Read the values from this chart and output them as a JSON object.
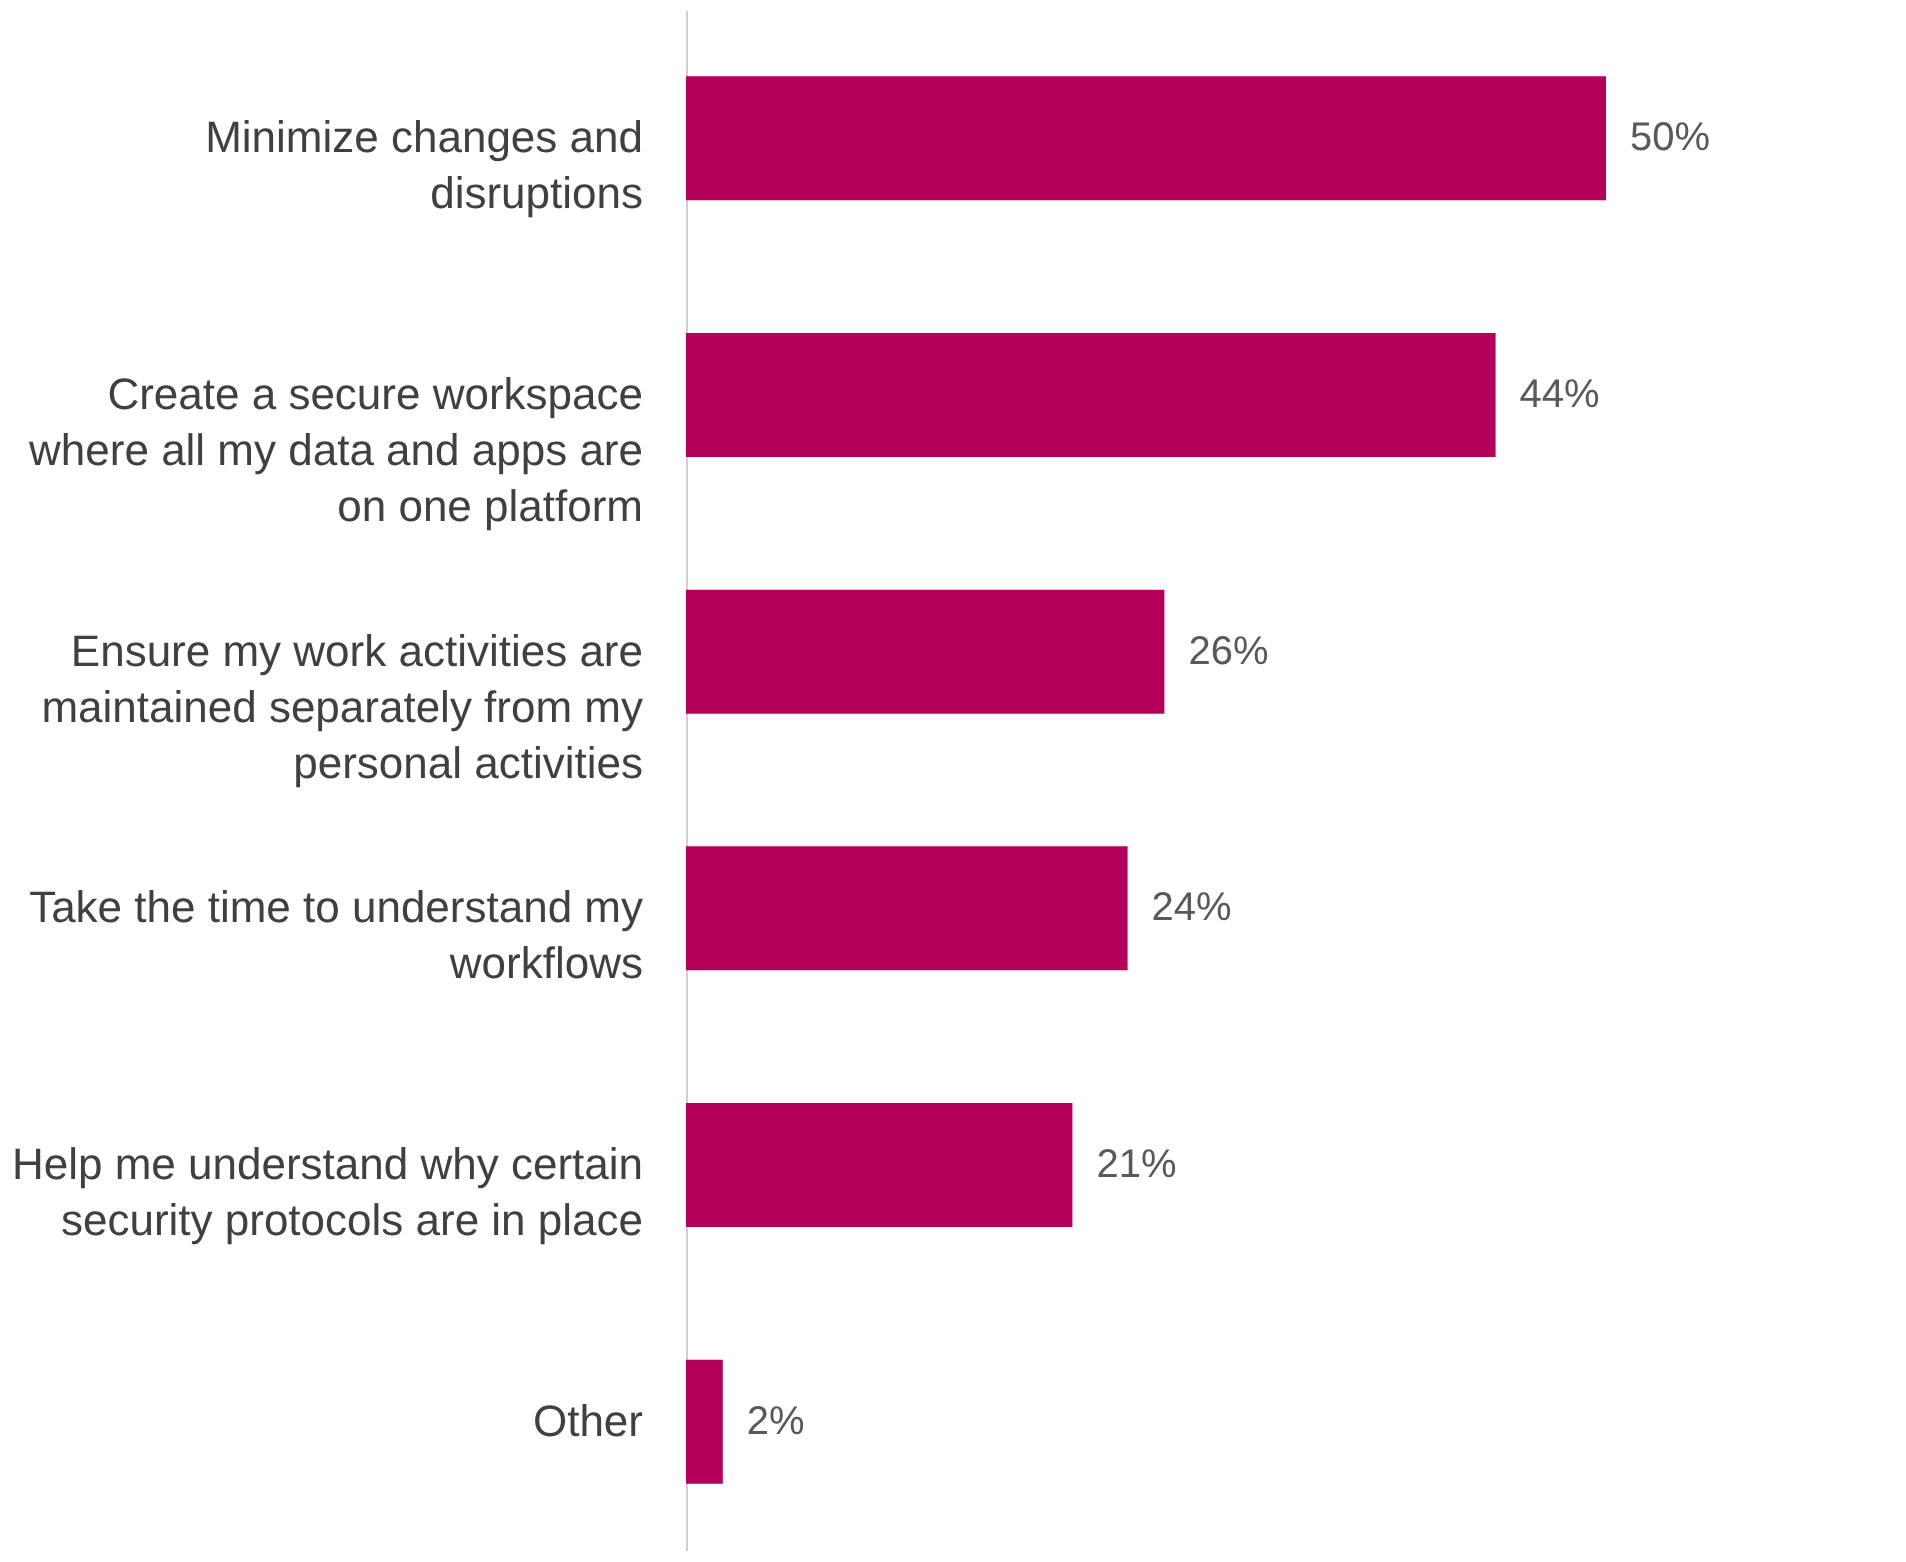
{
  "chart_data": {
    "type": "bar",
    "orientation": "horizontal",
    "categories": [
      "Minimize changes and\ndisruptions",
      "Create a secure workspace\nwhere all my data and apps are\non one platform",
      "Ensure my work activities are\nmaintained separately from my\npersonal activities",
      "Take the time to understand my\nworkflows",
      "Help me understand why certain\nsecurity protocols are in place",
      "Other"
    ],
    "values": [
      50,
      44,
      26,
      24,
      21,
      2
    ],
    "value_labels": [
      "50%",
      "44%",
      "26%",
      "24%",
      "21%",
      "2%"
    ],
    "color": "#b5005a"
  }
}
